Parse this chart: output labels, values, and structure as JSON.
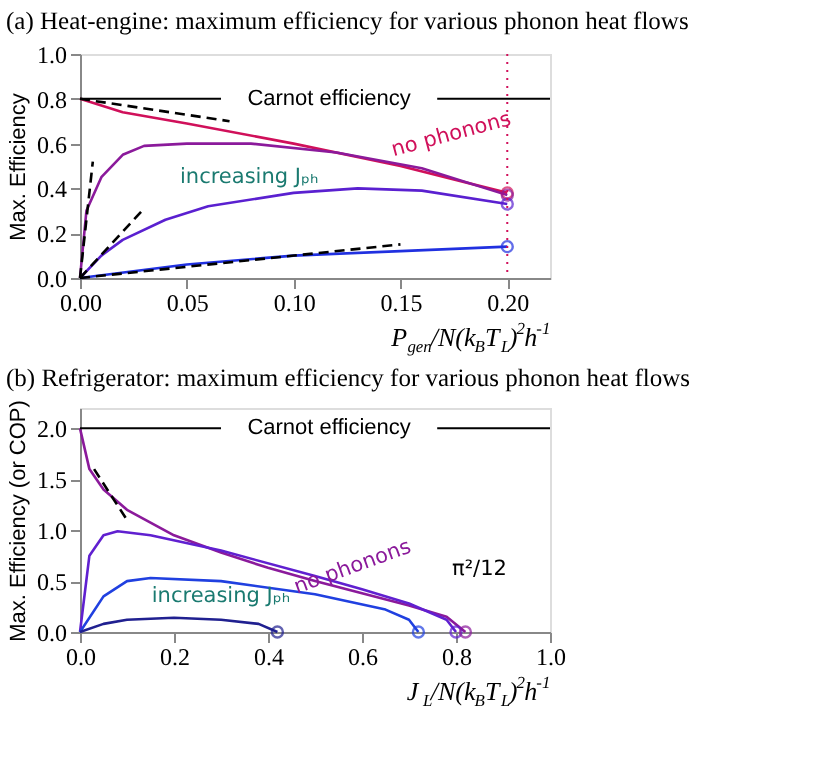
{
  "chart_data": [
    {
      "type": "line",
      "title": "(a) Heat-engine: maximum efficiency for various phonon heat flows",
      "xlabel": "P$_{gen}$/N(k$_{B}$T$_{L}$)$^{2}$h$^{-1}$",
      "ylabel": "Max. Efficiency",
      "xlim": [
        0,
        0.22
      ],
      "ylim": [
        0,
        1
      ],
      "xticks": [
        {
          "value": 0,
          "label": "0.00"
        },
        {
          "value": 0.05,
          "label": "0.05"
        },
        {
          "value": 0.1,
          "label": "0.10"
        },
        {
          "value": 0.15,
          "label": "0.15"
        },
        {
          "value": 0.2,
          "label": "0.20"
        }
      ],
      "yticks": [
        {
          "value": 0,
          "label": "0.0"
        },
        0.2,
        0.4,
        0.6,
        0.8,
        {
          "value": 1,
          "label": "1.0"
        }
      ],
      "grid": false,
      "series": [
        {
          "color": "#d0105a",
          "x": [
            0,
            0.02,
            0.05,
            0.1,
            0.15,
            0.2
          ],
          "values": [
            0.8,
            0.74,
            0.69,
            0.6,
            0.5,
            0.38
          ]
        },
        {
          "color": "#8b1a9b",
          "x": [
            0,
            0.003,
            0.01,
            0.02,
            0.03,
            0.05,
            0.08,
            0.12,
            0.16,
            0.2
          ],
          "values": [
            0,
            0.3,
            0.45,
            0.55,
            0.59,
            0.6,
            0.6,
            0.56,
            0.49,
            0.37
          ]
        },
        {
          "color": "#5a20d0",
          "x": [
            0,
            0.01,
            0.02,
            0.04,
            0.06,
            0.1,
            0.13,
            0.16,
            0.2
          ],
          "values": [
            0,
            0.1,
            0.17,
            0.26,
            0.32,
            0.38,
            0.4,
            0.39,
            0.33
          ]
        },
        {
          "color": "#2030e0",
          "x": [
            0,
            0.05,
            0.1,
            0.15,
            0.2
          ],
          "values": [
            0,
            0.06,
            0.1,
            0.12,
            0.14
          ]
        },
        {
          "color": "#000000",
          "line_style": "dashed",
          "x": [
            0,
            0.07
          ],
          "values": [
            0.8,
            0.7
          ]
        },
        {
          "color": "#000000",
          "line_style": "dashed",
          "x": [
            0,
            0.006
          ],
          "values": [
            0,
            0.52
          ]
        },
        {
          "color": "#000000",
          "line_style": "dashed",
          "x": [
            0,
            0.03
          ],
          "values": [
            0,
            0.31
          ]
        },
        {
          "color": "#000000",
          "line_style": "dashed",
          "x": [
            0,
            0.15
          ],
          "values": [
            0,
            0.15
          ]
        },
        {
          "type": "scatter",
          "marker": "circle",
          "x": [
            0.2,
            0.2,
            0.2,
            0.2
          ],
          "values": [
            0.38,
            0.37,
            0.33,
            0.14
          ],
          "colors": [
            "#d0105a",
            "#8b1a9b",
            "#5a20d0",
            "#2030e0"
          ]
        }
      ],
      "ref_lines": [
        {
          "axis": "y",
          "value": 0.8,
          "label": "Carnot efficiency",
          "color": "#000000"
        },
        {
          "axis": "x",
          "value": 0.2,
          "color": "#d0105a",
          "line_style": "dotted"
        }
      ],
      "annotations": [
        "no phonons",
        "increasing Jₚₕ"
      ]
    },
    {
      "type": "line",
      "title": "(b) Refrigerator: maximum efficiency for various phonon heat flows",
      "xlabel": "J$_{L}$/N(k$_{B}$T$_{L}$)$^{2}$h$^{-1}$",
      "ylabel": "Max. Efficiency (or COP)",
      "xlim": [
        0,
        1
      ],
      "ylim": [
        0,
        2.2
      ],
      "xticks": [
        {
          "value": 0,
          "label": "0.0"
        },
        0.2,
        0.4,
        0.6,
        0.8,
        {
          "value": 1,
          "label": "1.0"
        }
      ],
      "yticks": [
        {
          "value": 0,
          "label": "0.0"
        },
        0.5,
        {
          "value": 1,
          "label": "1.0"
        },
        1.5,
        {
          "value": 2,
          "label": "2.0"
        }
      ],
      "grid": false,
      "series": [
        {
          "color": "#8b1a9b",
          "x": [
            0,
            0.02,
            0.05,
            0.1,
            0.2,
            0.3,
            0.4,
            0.5,
            0.6,
            0.7,
            0.78,
            0.82
          ],
          "values": [
            2,
            1.6,
            1.4,
            1.2,
            0.95,
            0.78,
            0.63,
            0.5,
            0.38,
            0.26,
            0.15,
            0
          ]
        },
        {
          "color": "#6020d0",
          "x": [
            0,
            0.02,
            0.05,
            0.08,
            0.15,
            0.3,
            0.5,
            0.6,
            0.7,
            0.78,
            0.8
          ],
          "values": [
            0,
            0.75,
            0.95,
            0.99,
            0.95,
            0.8,
            0.55,
            0.42,
            0.28,
            0.12,
            0
          ]
        },
        {
          "color": "#2040e0",
          "x": [
            0,
            0.05,
            0.1,
            0.15,
            0.3,
            0.5,
            0.65,
            0.7,
            0.72
          ],
          "values": [
            0,
            0.35,
            0.5,
            0.53,
            0.5,
            0.37,
            0.22,
            0.12,
            0
          ]
        },
        {
          "color": "#202090",
          "x": [
            0,
            0.05,
            0.1,
            0.2,
            0.3,
            0.38,
            0.42
          ],
          "values": [
            0,
            0.08,
            0.12,
            0.14,
            0.12,
            0.08,
            0
          ]
        },
        {
          "color": "#000000",
          "line_style": "dashed",
          "x": [
            0.03,
            0.1
          ],
          "values": [
            1.6,
            1.1
          ]
        },
        {
          "type": "scatter",
          "marker": "circle",
          "x": [
            0.42,
            0.72,
            0.8,
            0.82
          ],
          "values": [
            0,
            0,
            0,
            0
          ],
          "colors": [
            "#202090",
            "#2040e0",
            "#6020d0",
            "#8b1a9b"
          ]
        }
      ],
      "ref_lines": [
        {
          "axis": "y",
          "value": 2,
          "label": "Carnot efficiency",
          "color": "#000000"
        }
      ],
      "annotations": [
        "no phonons",
        "increasing Jₚₕ",
        "π²/12"
      ]
    }
  ]
}
